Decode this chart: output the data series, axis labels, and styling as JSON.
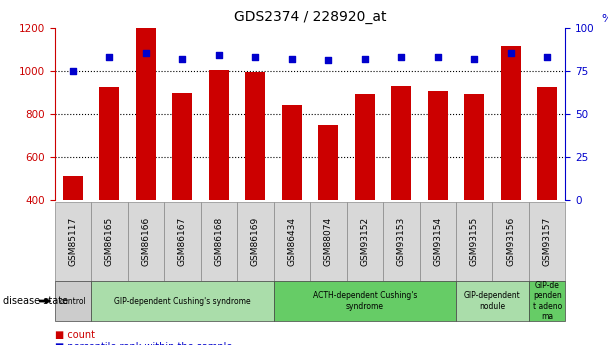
{
  "title": "GDS2374 / 228920_at",
  "samples": [
    "GSM85117",
    "GSM86165",
    "GSM86166",
    "GSM86167",
    "GSM86168",
    "GSM86169",
    "GSM86434",
    "GSM88074",
    "GSM93152",
    "GSM93153",
    "GSM93154",
    "GSM93155",
    "GSM93156",
    "GSM93157"
  ],
  "counts": [
    510,
    925,
    1200,
    895,
    1005,
    995,
    840,
    750,
    890,
    930,
    905,
    890,
    1115,
    925
  ],
  "percentiles": [
    75,
    83,
    85,
    82,
    84,
    83,
    82,
    81,
    82,
    83,
    83,
    82,
    85,
    83
  ],
  "ylim_left": [
    400,
    1200
  ],
  "ylim_right": [
    0,
    100
  ],
  "yticks_left": [
    400,
    600,
    800,
    1000,
    1200
  ],
  "yticks_right": [
    0,
    25,
    50,
    75,
    100
  ],
  "bar_color": "#cc0000",
  "dot_color": "#0000cc",
  "bg_color": "#ffffff",
  "disease_groups": [
    {
      "label": "control",
      "start": 0,
      "end": 1,
      "color": "#cccccc"
    },
    {
      "label": "GIP-dependent Cushing's syndrome",
      "start": 1,
      "end": 6,
      "color": "#aaddaa"
    },
    {
      "label": "ACTH-dependent Cushing's\nsyndrome",
      "start": 6,
      "end": 11,
      "color": "#66cc66"
    },
    {
      "label": "GIP-dependent\nnodule",
      "start": 11,
      "end": 13,
      "color": "#aaddaa"
    },
    {
      "label": "GIP-de\npenden\nt adeno\nma",
      "start": 13,
      "end": 14,
      "color": "#66cc66"
    }
  ],
  "xlabel_color": "#cc0000",
  "right_axis_color": "#0000cc",
  "title_fontsize": 10,
  "tick_fontsize": 7.5,
  "bar_width": 0.55
}
